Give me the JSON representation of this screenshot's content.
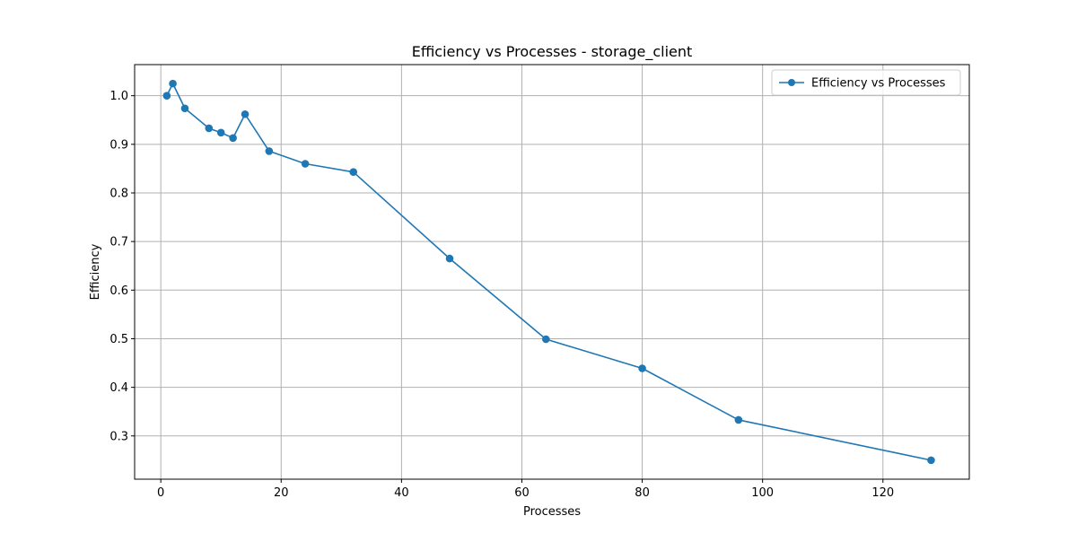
{
  "chart_data": {
    "type": "line",
    "title": "Efficiency vs Processes  - storage_client",
    "xlabel": "Processes",
    "ylabel": "Efficiency",
    "xlim": [
      -4.35,
      134.35
    ],
    "ylim": [
      0.211,
      1.064
    ],
    "x_ticks": [
      0,
      20,
      40,
      60,
      80,
      100,
      120
    ],
    "y_ticks": [
      0.3,
      0.4,
      0.5,
      0.6,
      0.7,
      0.8,
      0.9,
      1.0
    ],
    "x_tick_labels": [
      "0",
      "20",
      "40",
      "60",
      "80",
      "100",
      "120"
    ],
    "y_tick_labels": [
      "0.3",
      "0.4",
      "0.5",
      "0.6",
      "0.7",
      "0.8",
      "0.9",
      "1.0"
    ],
    "grid": true,
    "legend_position": "top-right",
    "series": [
      {
        "name": "Efficiency vs Processes",
        "color": "#1f77b4",
        "marker": "circle",
        "x": [
          1,
          2,
          4,
          8,
          10,
          12,
          14,
          18,
          24,
          32,
          48,
          64,
          80,
          96,
          128
        ],
        "y": [
          1.0,
          1.025,
          0.974,
          0.933,
          0.924,
          0.913,
          0.962,
          0.886,
          0.86,
          0.843,
          0.665,
          0.499,
          0.439,
          0.333,
          0.25
        ]
      }
    ]
  }
}
